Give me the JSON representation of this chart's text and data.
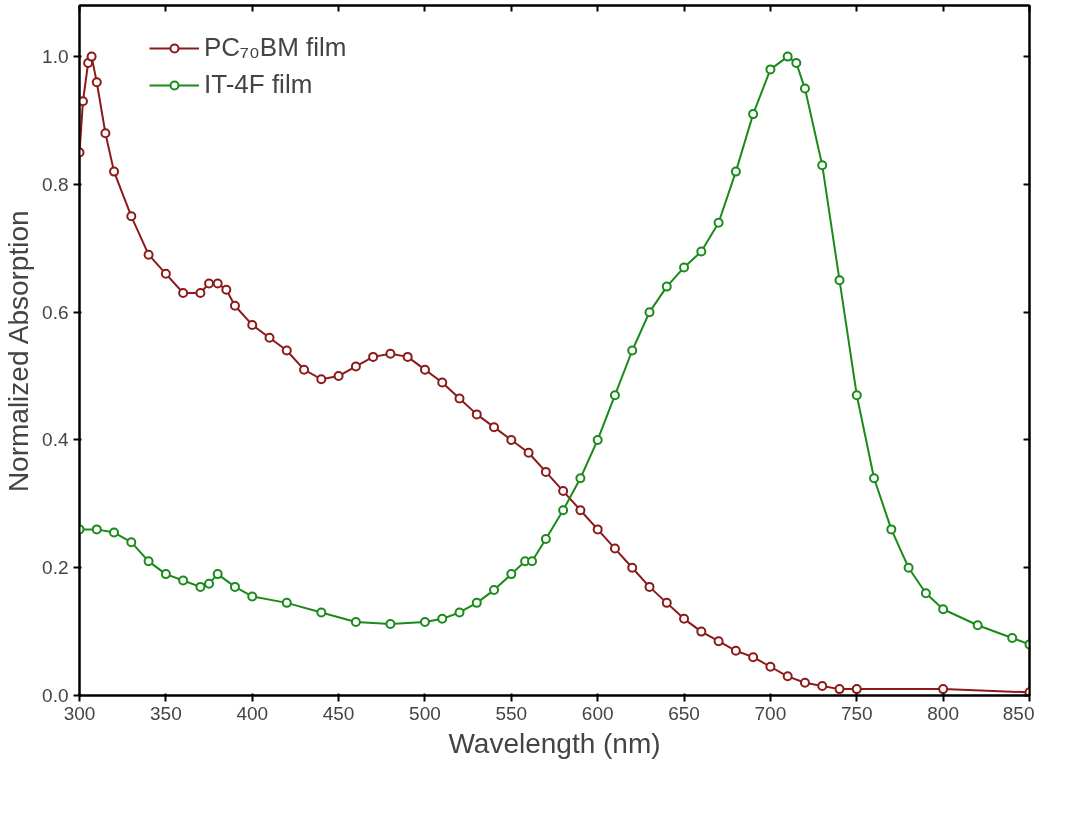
{
  "chart_data": {
    "type": "line",
    "xlabel": "Wavelength (nm)",
    "ylabel": "Normalized Absorption",
    "xlim": [
      300,
      850
    ],
    "ylim": [
      0,
      1.08
    ],
    "xticks": [
      300,
      350,
      400,
      450,
      500,
      550,
      600,
      650,
      700,
      750,
      800,
      850
    ],
    "yticks": [
      {
        "value": 0,
        "label": "0.0"
      },
      {
        "value": 0.2,
        "label": "0.2"
      },
      {
        "value": 0.4,
        "label": "0.4"
      },
      {
        "value": 0.6,
        "label": "0.6"
      },
      {
        "value": 0.8,
        "label": "0.8"
      },
      {
        "value": 1,
        "label": "1.0"
      }
    ],
    "grid": false,
    "legend": "top left",
    "marker": "circle",
    "line_style": "solid",
    "series": [
      {
        "name": "PC₇₀BM film",
        "color": "#8b1a1a",
        "x": [
          300,
          302,
          305,
          307,
          310,
          315,
          320,
          330,
          340,
          350,
          360,
          370,
          375,
          380,
          385,
          390,
          400,
          410,
          420,
          430,
          440,
          450,
          460,
          470,
          480,
          490,
          500,
          510,
          520,
          530,
          540,
          550,
          560,
          570,
          580,
          590,
          600,
          610,
          620,
          630,
          640,
          650,
          660,
          670,
          680,
          690,
          700,
          710,
          720,
          730,
          740,
          750,
          800,
          850
        ],
        "values": [
          0.85,
          0.93,
          0.99,
          1.0,
          0.96,
          0.88,
          0.82,
          0.75,
          0.69,
          0.66,
          0.63,
          0.63,
          0.645,
          0.645,
          0.635,
          0.61,
          0.58,
          0.56,
          0.54,
          0.51,
          0.495,
          0.5,
          0.515,
          0.53,
          0.535,
          0.53,
          0.51,
          0.49,
          0.465,
          0.44,
          0.42,
          0.4,
          0.38,
          0.35,
          0.32,
          0.29,
          0.26,
          0.23,
          0.2,
          0.17,
          0.145,
          0.12,
          0.1,
          0.085,
          0.07,
          0.06,
          0.045,
          0.03,
          0.02,
          0.015,
          0.01,
          0.01,
          0.01,
          0.005
        ]
      },
      {
        "name": "IT-4F film",
        "color": "#1a8a1a",
        "x": [
          300,
          310,
          320,
          330,
          340,
          350,
          360,
          370,
          375,
          380,
          390,
          400,
          420,
          440,
          460,
          480,
          500,
          510,
          520,
          530,
          540,
          550,
          558,
          562,
          570,
          580,
          590,
          600,
          610,
          620,
          630,
          640,
          650,
          660,
          670,
          680,
          690,
          700,
          710,
          715,
          720,
          730,
          740,
          750,
          760,
          770,
          780,
          790,
          800,
          820,
          840,
          850
        ],
        "values": [
          0.26,
          0.26,
          0.255,
          0.24,
          0.21,
          0.19,
          0.18,
          0.17,
          0.175,
          0.19,
          0.17,
          0.155,
          0.145,
          0.13,
          0.115,
          0.112,
          0.115,
          0.12,
          0.13,
          0.145,
          0.165,
          0.19,
          0.21,
          0.21,
          0.245,
          0.29,
          0.34,
          0.4,
          0.47,
          0.54,
          0.6,
          0.64,
          0.67,
          0.695,
          0.74,
          0.82,
          0.91,
          0.98,
          1.0,
          0.99,
          0.95,
          0.83,
          0.65,
          0.47,
          0.34,
          0.26,
          0.2,
          0.16,
          0.135,
          0.11,
          0.09,
          0.08
        ]
      }
    ]
  }
}
